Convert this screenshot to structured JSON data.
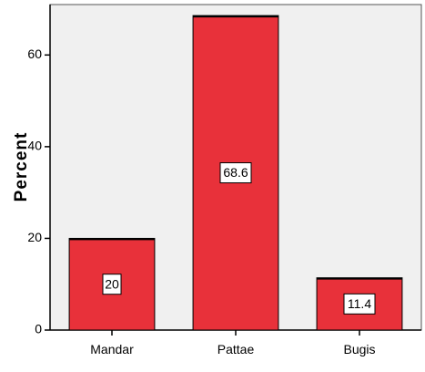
{
  "chart_data": {
    "type": "bar",
    "categories": [
      "Mandar",
      "Pattae",
      "Bugis"
    ],
    "values": [
      20,
      68.6,
      11.4
    ],
    "data_labels": [
      "20",
      "68.6",
      "11.4"
    ],
    "ylabel": "Percent",
    "xlabel": "",
    "ylim": [
      0,
      71
    ],
    "yticks": [
      0,
      20,
      40,
      60
    ],
    "bar_color": "#e8313a",
    "plot_background": "#f0f0f0",
    "grid": false
  }
}
